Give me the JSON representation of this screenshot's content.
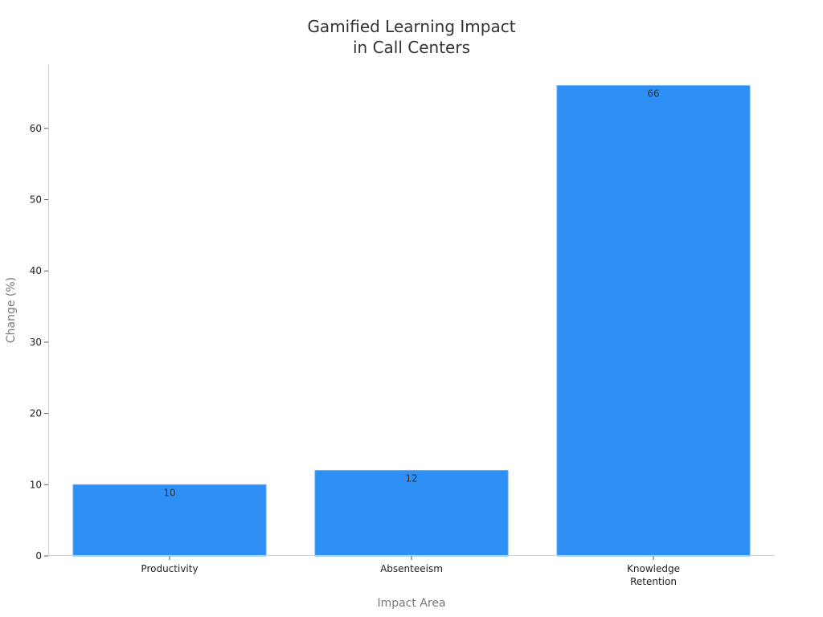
{
  "chart_data": {
    "type": "bar",
    "title": [
      "Gamified Learning Impact",
      "in Call Centers"
    ],
    "xlabel": "Impact Area",
    "ylabel": "Change (%)",
    "categories": [
      [
        "Productivity"
      ],
      [
        "Absenteeism"
      ],
      [
        "Knowledge",
        "Retention"
      ]
    ],
    "values": [
      10,
      12,
      66
    ],
    "data_labels": [
      "10",
      "12",
      "66"
    ],
    "ylim": [
      0,
      69
    ],
    "yticks": [
      0,
      10,
      20,
      30,
      40,
      50,
      60
    ],
    "grid": false,
    "legend": "none",
    "colors": {
      "bar": "#2e90f5",
      "bar_edge": "#5aaaf7"
    }
  }
}
